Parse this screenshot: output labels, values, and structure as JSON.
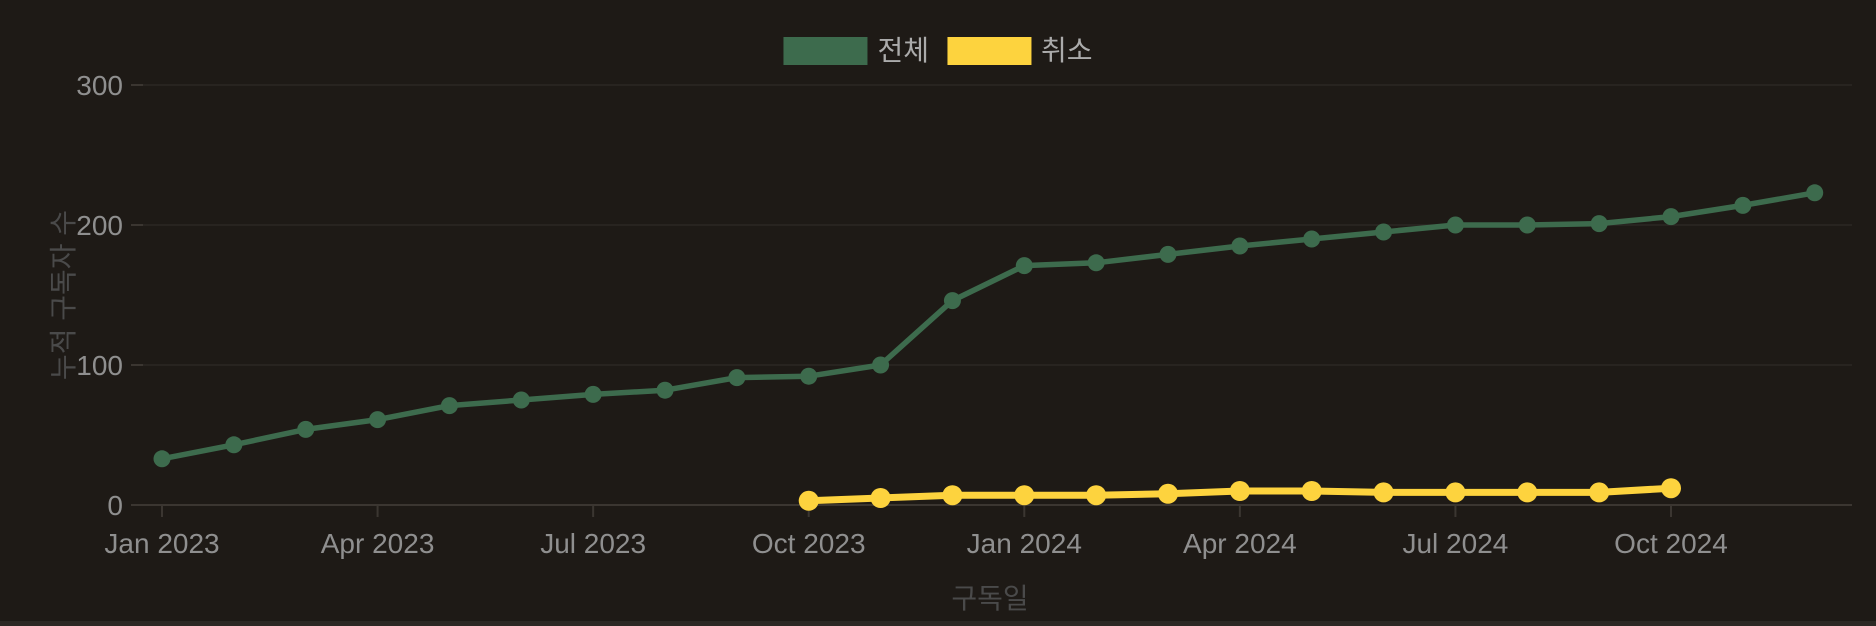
{
  "chart_data": {
    "type": "line",
    "xlabel": "구독일",
    "ylabel": "누적 구독자 수",
    "y_ticks": [
      0,
      100,
      200,
      300
    ],
    "ylim": [
      0,
      300
    ],
    "grid": "horizontal",
    "legend_position": "top-center",
    "x_tick_labels": [
      "Jan 2023",
      "Apr 2023",
      "Jul 2023",
      "Oct 2023",
      "Jan 2024",
      "Apr 2024",
      "Jul 2024",
      "Oct 2024"
    ],
    "x_tick_month_indices": [
      0,
      3,
      6,
      9,
      12,
      15,
      18,
      21
    ],
    "months": [
      "Jan 2023",
      "Feb 2023",
      "Mar 2023",
      "Apr 2023",
      "May 2023",
      "Jun 2023",
      "Jul 2023",
      "Aug 2023",
      "Sep 2023",
      "Oct 2023",
      "Nov 2023",
      "Dec 2023",
      "Jan 2024",
      "Feb 2024",
      "Mar 2024",
      "Apr 2024",
      "May 2024",
      "Jun 2024",
      "Jul 2024",
      "Aug 2024",
      "Sep 2024",
      "Oct 2024",
      "Nov 2024",
      "Dec 2024"
    ],
    "series": [
      {
        "name": "전체",
        "color": "#3d6b4d",
        "start_month_index": 0,
        "values": [
          33,
          43,
          54,
          61,
          71,
          75,
          79,
          82,
          91,
          92,
          100,
          146,
          171,
          173,
          179,
          185,
          190,
          195,
          200,
          200,
          201,
          206,
          214,
          223
        ]
      },
      {
        "name": "취소",
        "color": "#fdd33e",
        "start_month_index": 9,
        "values": [
          3,
          5,
          7,
          7,
          7,
          8,
          10,
          10,
          9,
          9,
          9,
          9,
          12
        ]
      }
    ]
  },
  "colors": {
    "background": "#1e1a16",
    "gridline": "#2b2723",
    "axis_line": "#3b3631",
    "tick_text": "#8f8f8f",
    "axis_title_text": "#4a4a4a",
    "legend_text": "#ababab",
    "series_total": "#3d6b4d",
    "series_cancel": "#fdd33e"
  }
}
